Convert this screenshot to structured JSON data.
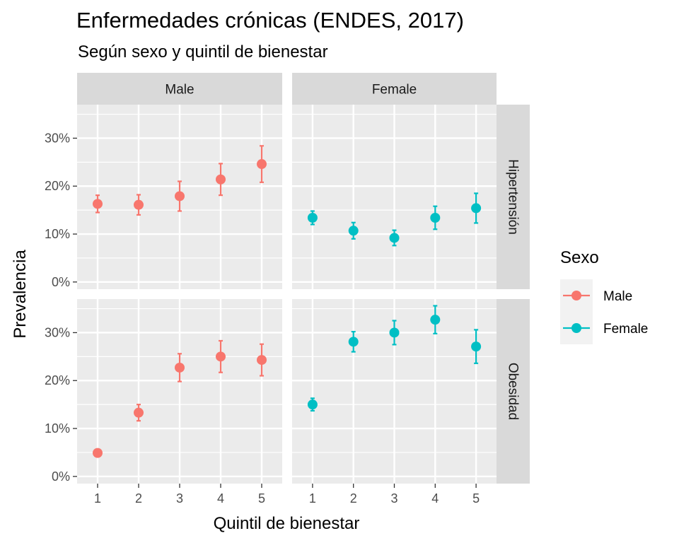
{
  "chart_data": {
    "type": "scatter",
    "title": "Enfermedades crónicas (ENDES, 2017)",
    "subtitle": "Según sexo y quintil de bienestar",
    "xlabel": "Quintil de bienestar",
    "ylabel": "Prevalencia",
    "x_ticks": [
      "1",
      "2",
      "3",
      "4",
      "5"
    ],
    "y_ticks": [
      {
        "value": 0,
        "label": "0%"
      },
      {
        "value": 10,
        "label": "10%"
      },
      {
        "value": 20,
        "label": "20%"
      },
      {
        "value": 30,
        "label": "30%"
      }
    ],
    "ylim": [
      -1.5,
      37
    ],
    "xlim": [
      0.5,
      5.5
    ],
    "columns": [
      "Male",
      "Female"
    ],
    "rows": [
      "Hipertensión",
      "Obesidad"
    ],
    "legend": {
      "title": "Sexo",
      "position": "right",
      "entries": [
        {
          "name": "Male",
          "color": "#F8766D"
        },
        {
          "name": "Female",
          "color": "#00BFC4"
        }
      ]
    },
    "panels": [
      {
        "row": "Hipertensión",
        "col": "Male",
        "color": "#F8766D",
        "points": [
          {
            "x": 1,
            "y": 16.3,
            "lo": 14.5,
            "hi": 18.1
          },
          {
            "x": 2,
            "y": 16.1,
            "lo": 14.0,
            "hi": 18.2
          },
          {
            "x": 3,
            "y": 17.9,
            "lo": 14.8,
            "hi": 21.0
          },
          {
            "x": 4,
            "y": 21.4,
            "lo": 18.1,
            "hi": 24.7
          },
          {
            "x": 5,
            "y": 24.6,
            "lo": 20.8,
            "hi": 28.4
          }
        ]
      },
      {
        "row": "Hipertensión",
        "col": "Female",
        "color": "#00BFC4",
        "points": [
          {
            "x": 1,
            "y": 13.4,
            "lo": 12.0,
            "hi": 14.8
          },
          {
            "x": 2,
            "y": 10.7,
            "lo": 9.0,
            "hi": 12.4
          },
          {
            "x": 3,
            "y": 9.2,
            "lo": 7.6,
            "hi": 10.8
          },
          {
            "x": 4,
            "y": 13.4,
            "lo": 11.0,
            "hi": 15.8
          },
          {
            "x": 5,
            "y": 15.4,
            "lo": 12.3,
            "hi": 18.5
          }
        ]
      },
      {
        "row": "Obesidad",
        "col": "Male",
        "color": "#F8766D",
        "points": [
          {
            "x": 1,
            "y": 4.9,
            "lo": 4.4,
            "hi": 5.4
          },
          {
            "x": 2,
            "y": 13.3,
            "lo": 11.6,
            "hi": 15.0
          },
          {
            "x": 3,
            "y": 22.7,
            "lo": 19.8,
            "hi": 25.6
          },
          {
            "x": 4,
            "y": 25.0,
            "lo": 21.7,
            "hi": 28.3
          },
          {
            "x": 5,
            "y": 24.3,
            "lo": 21.0,
            "hi": 27.6
          }
        ]
      },
      {
        "row": "Obesidad",
        "col": "Female",
        "color": "#00BFC4",
        "points": [
          {
            "x": 1,
            "y": 15.0,
            "lo": 13.7,
            "hi": 16.3
          },
          {
            "x": 2,
            "y": 28.1,
            "lo": 26.0,
            "hi": 30.2
          },
          {
            "x": 3,
            "y": 30.0,
            "lo": 27.5,
            "hi": 32.5
          },
          {
            "x": 4,
            "y": 32.7,
            "lo": 29.8,
            "hi": 35.6
          },
          {
            "x": 5,
            "y": 27.1,
            "lo": 23.6,
            "hi": 30.6
          }
        ]
      }
    ]
  }
}
